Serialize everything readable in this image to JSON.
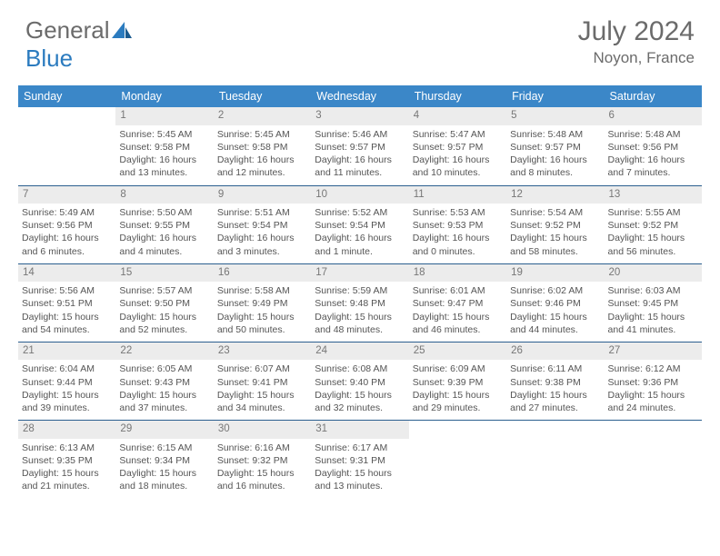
{
  "brand": {
    "part1": "General",
    "part2": "Blue"
  },
  "title": "July 2024",
  "location": "Noyon, France",
  "colors": {
    "header_bg": "#3b87c8",
    "header_text": "#ffffff",
    "daynum_bg": "#ececec",
    "border": "#2b5f8f",
    "text": "#555555",
    "title_color": "#6b6b6b"
  },
  "weekdays": [
    "Sunday",
    "Monday",
    "Tuesday",
    "Wednesday",
    "Thursday",
    "Friday",
    "Saturday"
  ],
  "weeks": [
    [
      null,
      {
        "n": "1",
        "sr": "Sunrise: 5:45 AM",
        "ss": "Sunset: 9:58 PM",
        "dl": "Daylight: 16 hours and 13 minutes."
      },
      {
        "n": "2",
        "sr": "Sunrise: 5:45 AM",
        "ss": "Sunset: 9:58 PM",
        "dl": "Daylight: 16 hours and 12 minutes."
      },
      {
        "n": "3",
        "sr": "Sunrise: 5:46 AM",
        "ss": "Sunset: 9:57 PM",
        "dl": "Daylight: 16 hours and 11 minutes."
      },
      {
        "n": "4",
        "sr": "Sunrise: 5:47 AM",
        "ss": "Sunset: 9:57 PM",
        "dl": "Daylight: 16 hours and 10 minutes."
      },
      {
        "n": "5",
        "sr": "Sunrise: 5:48 AM",
        "ss": "Sunset: 9:57 PM",
        "dl": "Daylight: 16 hours and 8 minutes."
      },
      {
        "n": "6",
        "sr": "Sunrise: 5:48 AM",
        "ss": "Sunset: 9:56 PM",
        "dl": "Daylight: 16 hours and 7 minutes."
      }
    ],
    [
      {
        "n": "7",
        "sr": "Sunrise: 5:49 AM",
        "ss": "Sunset: 9:56 PM",
        "dl": "Daylight: 16 hours and 6 minutes."
      },
      {
        "n": "8",
        "sr": "Sunrise: 5:50 AM",
        "ss": "Sunset: 9:55 PM",
        "dl": "Daylight: 16 hours and 4 minutes."
      },
      {
        "n": "9",
        "sr": "Sunrise: 5:51 AM",
        "ss": "Sunset: 9:54 PM",
        "dl": "Daylight: 16 hours and 3 minutes."
      },
      {
        "n": "10",
        "sr": "Sunrise: 5:52 AM",
        "ss": "Sunset: 9:54 PM",
        "dl": "Daylight: 16 hours and 1 minute."
      },
      {
        "n": "11",
        "sr": "Sunrise: 5:53 AM",
        "ss": "Sunset: 9:53 PM",
        "dl": "Daylight: 16 hours and 0 minutes."
      },
      {
        "n": "12",
        "sr": "Sunrise: 5:54 AM",
        "ss": "Sunset: 9:52 PM",
        "dl": "Daylight: 15 hours and 58 minutes."
      },
      {
        "n": "13",
        "sr": "Sunrise: 5:55 AM",
        "ss": "Sunset: 9:52 PM",
        "dl": "Daylight: 15 hours and 56 minutes."
      }
    ],
    [
      {
        "n": "14",
        "sr": "Sunrise: 5:56 AM",
        "ss": "Sunset: 9:51 PM",
        "dl": "Daylight: 15 hours and 54 minutes."
      },
      {
        "n": "15",
        "sr": "Sunrise: 5:57 AM",
        "ss": "Sunset: 9:50 PM",
        "dl": "Daylight: 15 hours and 52 minutes."
      },
      {
        "n": "16",
        "sr": "Sunrise: 5:58 AM",
        "ss": "Sunset: 9:49 PM",
        "dl": "Daylight: 15 hours and 50 minutes."
      },
      {
        "n": "17",
        "sr": "Sunrise: 5:59 AM",
        "ss": "Sunset: 9:48 PM",
        "dl": "Daylight: 15 hours and 48 minutes."
      },
      {
        "n": "18",
        "sr": "Sunrise: 6:01 AM",
        "ss": "Sunset: 9:47 PM",
        "dl": "Daylight: 15 hours and 46 minutes."
      },
      {
        "n": "19",
        "sr": "Sunrise: 6:02 AM",
        "ss": "Sunset: 9:46 PM",
        "dl": "Daylight: 15 hours and 44 minutes."
      },
      {
        "n": "20",
        "sr": "Sunrise: 6:03 AM",
        "ss": "Sunset: 9:45 PM",
        "dl": "Daylight: 15 hours and 41 minutes."
      }
    ],
    [
      {
        "n": "21",
        "sr": "Sunrise: 6:04 AM",
        "ss": "Sunset: 9:44 PM",
        "dl": "Daylight: 15 hours and 39 minutes."
      },
      {
        "n": "22",
        "sr": "Sunrise: 6:05 AM",
        "ss": "Sunset: 9:43 PM",
        "dl": "Daylight: 15 hours and 37 minutes."
      },
      {
        "n": "23",
        "sr": "Sunrise: 6:07 AM",
        "ss": "Sunset: 9:41 PM",
        "dl": "Daylight: 15 hours and 34 minutes."
      },
      {
        "n": "24",
        "sr": "Sunrise: 6:08 AM",
        "ss": "Sunset: 9:40 PM",
        "dl": "Daylight: 15 hours and 32 minutes."
      },
      {
        "n": "25",
        "sr": "Sunrise: 6:09 AM",
        "ss": "Sunset: 9:39 PM",
        "dl": "Daylight: 15 hours and 29 minutes."
      },
      {
        "n": "26",
        "sr": "Sunrise: 6:11 AM",
        "ss": "Sunset: 9:38 PM",
        "dl": "Daylight: 15 hours and 27 minutes."
      },
      {
        "n": "27",
        "sr": "Sunrise: 6:12 AM",
        "ss": "Sunset: 9:36 PM",
        "dl": "Daylight: 15 hours and 24 minutes."
      }
    ],
    [
      {
        "n": "28",
        "sr": "Sunrise: 6:13 AM",
        "ss": "Sunset: 9:35 PM",
        "dl": "Daylight: 15 hours and 21 minutes."
      },
      {
        "n": "29",
        "sr": "Sunrise: 6:15 AM",
        "ss": "Sunset: 9:34 PM",
        "dl": "Daylight: 15 hours and 18 minutes."
      },
      {
        "n": "30",
        "sr": "Sunrise: 6:16 AM",
        "ss": "Sunset: 9:32 PM",
        "dl": "Daylight: 15 hours and 16 minutes."
      },
      {
        "n": "31",
        "sr": "Sunrise: 6:17 AM",
        "ss": "Sunset: 9:31 PM",
        "dl": "Daylight: 15 hours and 13 minutes."
      },
      null,
      null,
      null
    ]
  ]
}
